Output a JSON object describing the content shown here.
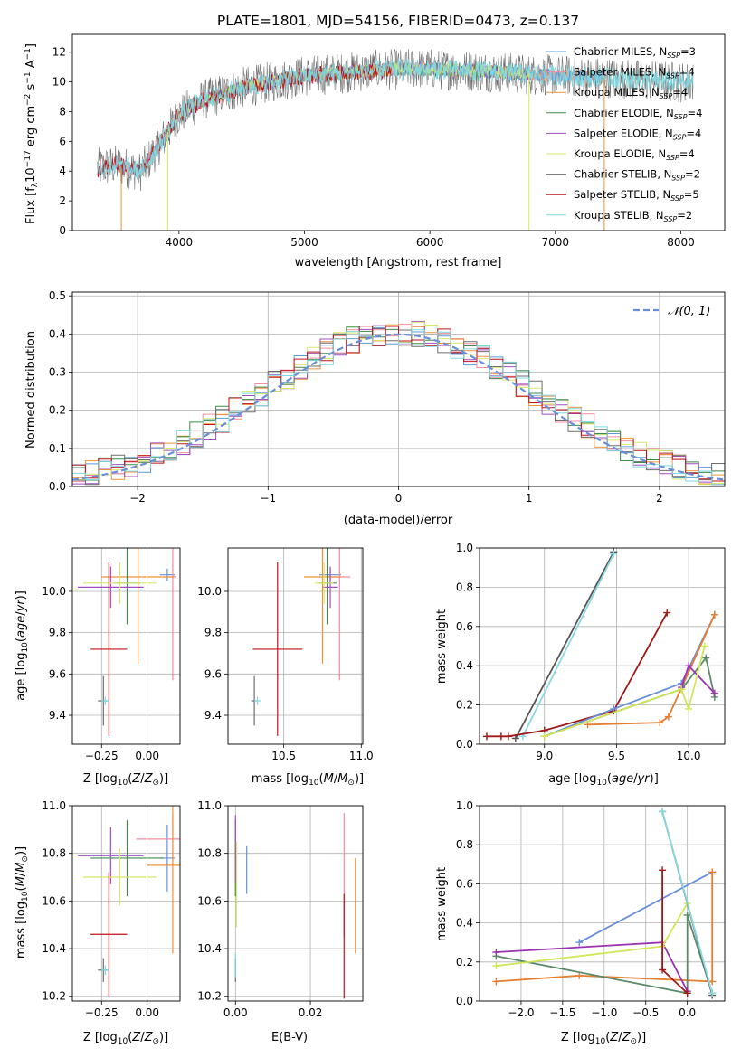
{
  "colors": {
    "chabrier_miles": "#5b9bd5",
    "salpeter_miles": "#f28ca0",
    "kroupa_miles": "#f0923a",
    "chabrier_elodie": "#3d8b4a",
    "salpeter_elodie": "#a04fc0",
    "kroupa_elodie": "#d8e86a",
    "chabrier_stelib": "#6e6e6e",
    "salpeter_stelib": "#c0131c",
    "kroupa_stelib": "#7ed8e0",
    "mw_blue": "#6a8fd8",
    "mw_orange": "#e67e32",
    "mw_green": "#5a8a6a",
    "mw_purple": "#9b33b0",
    "mw_yellow": "#d2e65a",
    "mw_dark": "#555555",
    "mw_red": "#a01818",
    "mw_cyan": "#8ad8e0"
  },
  "chart_data": [
    {
      "type": "line",
      "title": "PLATE=1801, MJD=54156, FIBERID=0473, z=0.137",
      "xlabel": "wavelength [Angstrom, rest frame]",
      "ylabel": "Flux [fλ10⁻¹⁷ erg cm⁻² s⁻¹ A⁻¹]",
      "xlim": [
        3150,
        8350
      ],
      "ylim": [
        0,
        13.2
      ],
      "xticks": [
        "4000",
        "5000",
        "6000",
        "7000",
        "8000"
      ],
      "yticks": [
        "0",
        "2",
        "4",
        "6",
        "8",
        "10",
        "12"
      ],
      "legend": [
        {
          "label": "Chabrier MILES, N",
          "sub": "SSP",
          "suffix": "=3",
          "color_key": "chabrier_miles"
        },
        {
          "label": "Salpeter MILES, N",
          "sub": "SSP",
          "suffix": "=4",
          "color_key": "salpeter_miles"
        },
        {
          "label": "Kroupa MILES, N",
          "sub": "SSP",
          "suffix": "=4",
          "color_key": "kroupa_miles"
        },
        {
          "label": "Chabrier ELODIE, N",
          "sub": "SSP",
          "suffix": "=4",
          "color_key": "chabrier_elodie"
        },
        {
          "label": "Salpeter ELODIE, N",
          "sub": "SSP",
          "suffix": "=4",
          "color_key": "salpeter_elodie"
        },
        {
          "label": "Kroupa ELODIE, N",
          "sub": "SSP",
          "suffix": "=4",
          "color_key": "kroupa_elodie"
        },
        {
          "label": "Chabrier STELIB, N",
          "sub": "SSP",
          "suffix": "=2",
          "color_key": "chabrier_stelib"
        },
        {
          "label": "Salpeter STELIB, N",
          "sub": "SSP",
          "suffix": "=5",
          "color_key": "salpeter_stelib"
        },
        {
          "label": "Kroupa STELIB, N",
          "sub": "SSP",
          "suffix": "=2",
          "color_key": "kroupa_stelib"
        }
      ],
      "continuum": {
        "x": [
          3350,
          3500,
          3700,
          3900,
          4000,
          4200,
          4500,
          4800,
          5000,
          5300,
          5600,
          5900,
          6200,
          6500,
          6800,
          7100,
          7400,
          7700,
          8000,
          8100
        ],
        "y": [
          4.2,
          4.4,
          4.0,
          6.5,
          7.8,
          8.8,
          9.6,
          10.1,
          10.4,
          10.6,
          10.8,
          10.9,
          10.8,
          10.7,
          10.5,
          10.4,
          10.3,
          10.1,
          10.0,
          10.0
        ]
      }
    },
    {
      "type": "bar",
      "xlabel": "(data-model)/error",
      "ylabel": "Normed distribution",
      "xlim": [
        -2.5,
        2.5
      ],
      "ylim": [
        0,
        0.51
      ],
      "xticks": [
        "−2",
        "−1",
        "0",
        "1",
        "2"
      ],
      "yticks": [
        "0.0",
        "0.1",
        "0.2",
        "0.3",
        "0.4",
        "0.5"
      ],
      "legend_label": "𝒩(0, 1)",
      "gauss_mu": 0,
      "gauss_sigma": 1,
      "bin_width": 0.1,
      "hist_amplitude": 0.405
    },
    {
      "type": "scatter",
      "xlabel": "Z [log₁₀(Z/Z⊙)]",
      "ylabel": "age  [log₁₀(age/yr)]",
      "xlim": [
        -0.41,
        0.18
      ],
      "ylim": [
        9.26,
        10.21
      ],
      "xticks": [
        "−0.25",
        "0.00"
      ],
      "yticks": [
        "9.4",
        "9.6",
        "9.8",
        "10.0"
      ]
    },
    {
      "type": "scatter",
      "xlabel": "mass [log₁₀(M/M⊙)]",
      "ylabel": "",
      "xlim": [
        10.14,
        11.01
      ],
      "ylim": [
        9.26,
        10.21
      ],
      "xticks": [
        "10.5",
        "11.0"
      ],
      "yticks": [
        "9.4",
        "9.6",
        "9.8",
        "10.0"
      ]
    },
    {
      "type": "line",
      "xlabel": "age  [log₁₀(age/yr)]",
      "ylabel": "mass weight",
      "xlim": [
        8.55,
        10.25
      ],
      "ylim": [
        0,
        1
      ],
      "xticks": [
        "9.0",
        "9.5",
        "10.0"
      ],
      "yticks": [
        "0.0",
        "0.2",
        "0.4",
        "0.6",
        "0.8",
        "1.0"
      ]
    },
    {
      "type": "scatter",
      "xlabel": "Z [log₁₀(Z/Z⊙)]",
      "ylabel": "mass [log₁₀(M/M⊙)]",
      "xlim": [
        -0.41,
        0.18
      ],
      "ylim": [
        10.18,
        11.0
      ],
      "xticks": [
        "−0.25",
        "0.00"
      ],
      "yticks": [
        "10.2",
        "10.4",
        "10.6",
        "10.8",
        "11.0"
      ]
    },
    {
      "type": "scatter",
      "xlabel": "E(B-V)",
      "ylabel": "",
      "xlim": [
        -0.002,
        0.034
      ],
      "ylim": [
        10.18,
        11.0
      ],
      "xticks": [
        "0.00",
        "0.02"
      ],
      "yticks": [
        "10.2",
        "10.4",
        "10.6",
        "10.8",
        "11.0"
      ]
    },
    {
      "type": "line",
      "xlabel": "Z [log₁₀(Z/Z⊙)]",
      "ylabel": "mass weight",
      "xlim": [
        -2.5,
        0.45
      ],
      "ylim": [
        0,
        1
      ],
      "xticks": [
        "−2.0",
        "−1.5",
        "−1.0",
        "−0.5",
        "0.0"
      ],
      "yticks": [
        "0.0",
        "0.2",
        "0.4",
        "0.6",
        "0.8",
        "1.0"
      ]
    }
  ],
  "errorbars_age_z": [
    {
      "color_key": "mw_blue",
      "x": 0.11,
      "y": 10.08,
      "xerr": 0.04,
      "yerr": 0.03
    },
    {
      "color_key": "salpeter_miles",
      "x": 0.14,
      "y": 10.07,
      "xerr": 0.02,
      "yerr": 0.5
    },
    {
      "color_key": "kroupa_miles",
      "x": -0.05,
      "y": 10.07,
      "xerr": 0.2,
      "yerr": 0.42
    },
    {
      "color_key": "chabrier_elodie",
      "x": -0.11,
      "y": 10.04,
      "xerr": 0.07,
      "yerr": 0.2
    },
    {
      "color_key": "salpeter_elodie",
      "x": -0.2,
      "y": 10.02,
      "xerr": 0.18,
      "yerr": 0.1
    },
    {
      "color_key": "kroupa_elodie",
      "x": -0.15,
      "y": 10.04,
      "xerr": 0.2,
      "yerr": 0.1
    },
    {
      "color_key": "chabrier_stelib",
      "x": -0.24,
      "y": 9.47,
      "xerr": 0.03,
      "yerr": 0.12
    },
    {
      "color_key": "salpeter_stelib",
      "x": -0.21,
      "y": 9.72,
      "xerr": 0.1,
      "yerr": 0.42
    },
    {
      "color_key": "kroupa_stelib",
      "x": -0.23,
      "y": 9.47,
      "xerr": 0.02,
      "yerr": 0.02
    }
  ],
  "errorbars_age_mass": [
    {
      "color_key": "mw_blue",
      "x": 10.8,
      "y": 10.08,
      "xerr": 0.07,
      "yerr": 0.03
    },
    {
      "color_key": "salpeter_miles",
      "x": 10.86,
      "y": 10.07,
      "xerr": 0.07,
      "yerr": 0.5
    },
    {
      "color_key": "kroupa_miles",
      "x": 10.75,
      "y": 10.07,
      "xerr": 0.12,
      "yerr": 0.42
    },
    {
      "color_key": "chabrier_elodie",
      "x": 10.78,
      "y": 10.04,
      "xerr": 0.06,
      "yerr": 0.2
    },
    {
      "color_key": "salpeter_elodie",
      "x": 10.8,
      "y": 10.02,
      "xerr": 0.05,
      "yerr": 0.1
    },
    {
      "color_key": "kroupa_elodie",
      "x": 10.76,
      "y": 10.04,
      "xerr": 0.06,
      "yerr": 0.1
    },
    {
      "color_key": "chabrier_stelib",
      "x": 10.31,
      "y": 9.47,
      "xerr": 0.02,
      "yerr": 0.12
    },
    {
      "color_key": "salpeter_stelib",
      "x": 10.46,
      "y": 9.72,
      "xerr": 0.16,
      "yerr": 0.42
    },
    {
      "color_key": "kroupa_stelib",
      "x": 10.33,
      "y": 9.47,
      "xerr": 0.02,
      "yerr": 0.02
    }
  ],
  "errorbars_mass_z": [
    {
      "color_key": "mw_blue",
      "x": 0.11,
      "y": 10.78,
      "xerr": 0.04,
      "yerr": 0.14
    },
    {
      "color_key": "salpeter_miles",
      "x": 0.14,
      "y": 10.86,
      "xerr": 0.2,
      "yerr": 0.1
    },
    {
      "color_key": "kroupa_miles",
      "x": 0.14,
      "y": 10.75,
      "xerr": 0.14,
      "yerr": 0.37
    },
    {
      "color_key": "chabrier_elodie",
      "x": -0.11,
      "y": 10.78,
      "xerr": 0.2,
      "yerr": 0.16
    },
    {
      "color_key": "salpeter_elodie",
      "x": -0.2,
      "y": 10.79,
      "xerr": 0.18,
      "yerr": 0.12
    },
    {
      "color_key": "kroupa_elodie",
      "x": -0.15,
      "y": 10.7,
      "xerr": 0.2,
      "yerr": 0.12
    },
    {
      "color_key": "chabrier_stelib",
      "x": -0.24,
      "y": 10.31,
      "xerr": 0.03,
      "yerr": 0.05
    },
    {
      "color_key": "salpeter_stelib",
      "x": -0.21,
      "y": 10.46,
      "xerr": 0.1,
      "yerr": 0.26
    },
    {
      "color_key": "kroupa_stelib",
      "x": -0.23,
      "y": 10.31,
      "xerr": 0.02,
      "yerr": 0.02
    }
  ],
  "errorbars_mass_ebv": [
    {
      "color_key": "mw_blue",
      "x": 0.003,
      "y": 10.73,
      "yerr": 0.1
    },
    {
      "color_key": "salpeter_miles",
      "x": 0.029,
      "y": 10.71,
      "yerr": 0.26
    },
    {
      "color_key": "kroupa_miles",
      "x": 0.032,
      "y": 10.58,
      "yerr": 0.2
    },
    {
      "color_key": "chabrier_elodie",
      "x": 0.0,
      "y": 10.78,
      "yerr": 0.16
    },
    {
      "color_key": "salpeter_elodie",
      "x": 0.0,
      "y": 10.82,
      "yerr": 0.14
    },
    {
      "color_key": "kroupa_elodie",
      "x": 0.0003,
      "y": 10.67,
      "yerr": 0.18
    },
    {
      "color_key": "chabrier_stelib",
      "x": 0.0,
      "y": 10.31,
      "yerr": 0.05
    },
    {
      "color_key": "salpeter_stelib",
      "x": 0.029,
      "y": 10.41,
      "yerr": 0.22
    },
    {
      "color_key": "kroupa_stelib",
      "x": 0.0,
      "y": 10.33,
      "yerr": 0.05
    }
  ],
  "weights_age": [
    {
      "color_key": "mw_dark",
      "points": [
        [
          8.8,
          0.03
        ],
        [
          9.48,
          0.98
        ]
      ]
    },
    {
      "color_key": "mw_cyan",
      "points": [
        [
          8.85,
          0.04
        ],
        [
          9.48,
          0.97
        ]
      ]
    },
    {
      "color_key": "mw_red",
      "points": [
        [
          8.6,
          0.04
        ],
        [
          8.7,
          0.04
        ],
        [
          8.75,
          0.04
        ],
        [
          9.0,
          0.07
        ],
        [
          9.48,
          0.17
        ],
        [
          9.85,
          0.67
        ]
      ]
    },
    {
      "color_key": "mw_blue",
      "points": [
        [
          9.0,
          0.04
        ],
        [
          9.48,
          0.18
        ],
        [
          9.95,
          0.31
        ],
        [
          10.18,
          0.66
        ]
      ]
    },
    {
      "color_key": "mw_orange",
      "points": [
        [
          9.3,
          0.1
        ],
        [
          9.8,
          0.11
        ],
        [
          9.86,
          0.14
        ],
        [
          10.18,
          0.66
        ]
      ]
    },
    {
      "color_key": "mw_green",
      "points": [
        [
          9.0,
          0.04
        ],
        [
          9.95,
          0.28
        ],
        [
          10.12,
          0.44
        ],
        [
          10.18,
          0.24
        ]
      ]
    },
    {
      "color_key": "mw_purple",
      "points": [
        [
          9.95,
          0.29
        ],
        [
          10.0,
          0.4
        ],
        [
          10.18,
          0.26
        ]
      ]
    },
    {
      "color_key": "mw_yellow",
      "points": [
        [
          9.0,
          0.04
        ],
        [
          9.95,
          0.28
        ],
        [
          10.0,
          0.18
        ],
        [
          10.11,
          0.5
        ]
      ]
    }
  ],
  "weights_z": [
    {
      "color_key": "mw_blue",
      "points": [
        [
          -1.3,
          0.3
        ],
        [
          0.3,
          0.66
        ]
      ]
    },
    {
      "color_key": "mw_orange",
      "points": [
        [
          -2.3,
          0.1
        ],
        [
          -1.3,
          0.13
        ],
        [
          0.3,
          0.1
        ],
        [
          0.3,
          0.66
        ]
      ]
    },
    {
      "color_key": "mw_green",
      "points": [
        [
          -2.3,
          0.23
        ],
        [
          0.0,
          0.04
        ],
        [
          0.0,
          0.44
        ],
        [
          0.3,
          0.04
        ]
      ]
    },
    {
      "color_key": "mw_purple",
      "points": [
        [
          -2.3,
          0.25
        ],
        [
          -0.3,
          0.3
        ],
        [
          0.0,
          0.05
        ]
      ]
    },
    {
      "color_key": "mw_yellow",
      "points": [
        [
          -2.3,
          0.18
        ],
        [
          -0.3,
          0.28
        ],
        [
          0.0,
          0.5
        ]
      ]
    },
    {
      "color_key": "mw_red",
      "points": [
        [
          -0.3,
          0.67
        ],
        [
          -0.3,
          0.16
        ],
        [
          0.0,
          0.04
        ]
      ]
    },
    {
      "color_key": "mw_dark",
      "points": [
        [
          -0.3,
          0.97
        ],
        [
          0.3,
          0.03
        ]
      ]
    },
    {
      "color_key": "mw_cyan",
      "points": [
        [
          -0.3,
          0.97
        ],
        [
          0.3,
          0.04
        ]
      ]
    }
  ]
}
